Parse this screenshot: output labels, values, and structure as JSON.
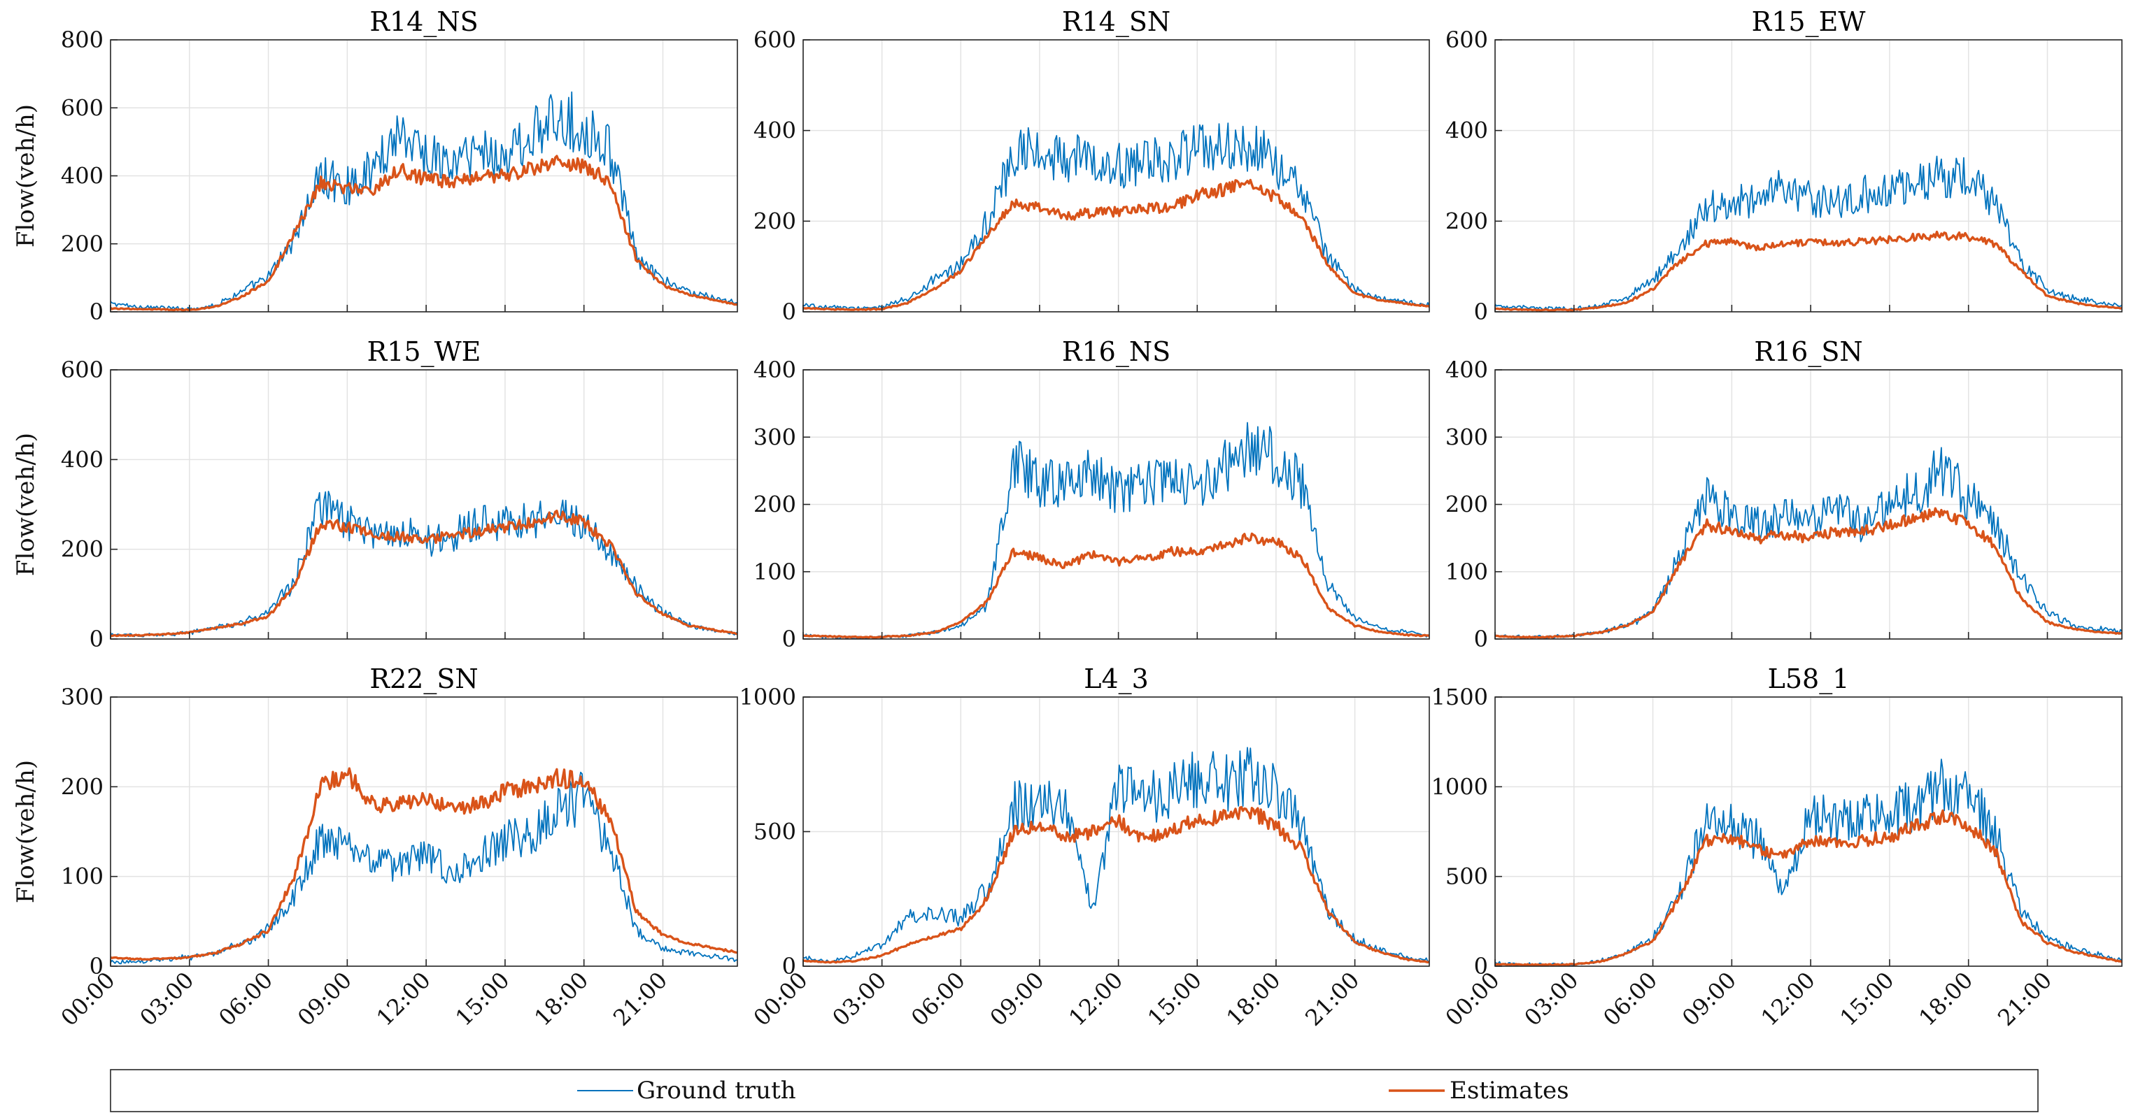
{
  "figure": {
    "ylabel": "Flow(veh/h)",
    "time_ticks": [
      "00:00",
      "03:00",
      "06:00",
      "09:00",
      "12:00",
      "15:00",
      "18:00",
      "21:00"
    ],
    "colors": {
      "ground_truth": "#0072BD",
      "estimates": "#D95319",
      "grid": "#e3e3e3",
      "axes": "#262626"
    }
  },
  "legend": {
    "ground_truth": "Ground truth",
    "estimates": "Estimates",
    "placement": "bottom"
  },
  "chart_data": [
    {
      "type": "line",
      "title": "R14_NS",
      "ylim": [
        0,
        800
      ],
      "yticks": [
        "0",
        "200",
        "400",
        "600",
        "800"
      ],
      "xlabel": "",
      "ylabel": "Flow(veh/h)",
      "x": [
        "00:00",
        "01:00",
        "02:00",
        "03:00",
        "04:00",
        "05:00",
        "06:00",
        "07:00",
        "08:00",
        "09:00",
        "10:00",
        "11:00",
        "12:00",
        "13:00",
        "14:00",
        "15:00",
        "16:00",
        "17:00",
        "18:00",
        "19:00",
        "20:00",
        "21:00",
        "22:00",
        "23:00",
        "23:50"
      ],
      "series": [
        {
          "name": "Ground truth",
          "values": [
            25,
            15,
            12,
            8,
            20,
            60,
            100,
            220,
            400,
            370,
            420,
            540,
            460,
            430,
            480,
            450,
            520,
            560,
            550,
            480,
            160,
            90,
            60,
            40,
            25
          ]
        },
        {
          "name": "Estimates",
          "values": [
            10,
            8,
            7,
            5,
            15,
            45,
            90,
            230,
            380,
            360,
            360,
            420,
            390,
            380,
            400,
            400,
            420,
            440,
            430,
            380,
            150,
            80,
            50,
            35,
            20
          ]
        }
      ]
    },
    {
      "type": "line",
      "title": "R14_SN",
      "ylim": [
        0,
        600
      ],
      "yticks": [
        "0",
        "200",
        "400",
        "600"
      ],
      "xlabel": "",
      "ylabel": "",
      "x": [
        "00:00",
        "01:00",
        "02:00",
        "03:00",
        "04:00",
        "05:00",
        "06:00",
        "07:00",
        "08:00",
        "09:00",
        "10:00",
        "11:00",
        "12:00",
        "13:00",
        "14:00",
        "15:00",
        "16:00",
        "17:00",
        "18:00",
        "19:00",
        "20:00",
        "21:00",
        "22:00",
        "23:00",
        "23:50"
      ],
      "series": [
        {
          "name": "Ground truth",
          "values": [
            15,
            10,
            8,
            10,
            30,
            70,
            110,
            200,
            340,
            360,
            330,
            340,
            320,
            330,
            340,
            360,
            360,
            370,
            330,
            260,
            120,
            50,
            30,
            20,
            15
          ]
        },
        {
          "name": "Estimates",
          "values": [
            8,
            6,
            5,
            6,
            20,
            50,
            90,
            170,
            240,
            230,
            210,
            220,
            220,
            230,
            230,
            260,
            270,
            290,
            250,
            210,
            100,
            40,
            25,
            18,
            12
          ]
        }
      ]
    },
    {
      "type": "line",
      "title": "R15_EW",
      "ylim": [
        0,
        600
      ],
      "yticks": [
        "0",
        "200",
        "400",
        "600"
      ],
      "xlabel": "",
      "ylabel": "",
      "x": [
        "00:00",
        "01:00",
        "02:00",
        "03:00",
        "04:00",
        "05:00",
        "06:00",
        "07:00",
        "08:00",
        "09:00",
        "10:00",
        "11:00",
        "12:00",
        "13:00",
        "14:00",
        "15:00",
        "16:00",
        "17:00",
        "18:00",
        "19:00",
        "20:00",
        "21:00",
        "22:00",
        "23:00",
        "23:50"
      ],
      "series": [
        {
          "name": "Ground truth",
          "values": [
            15,
            10,
            8,
            6,
            15,
            30,
            70,
            140,
            230,
            240,
            250,
            280,
            250,
            240,
            260,
            270,
            280,
            300,
            290,
            240,
            110,
            50,
            30,
            20,
            15
          ]
        },
        {
          "name": "Estimates",
          "values": [
            6,
            5,
            4,
            4,
            10,
            20,
            50,
            110,
            150,
            155,
            140,
            150,
            155,
            150,
            155,
            160,
            165,
            170,
            165,
            150,
            90,
            35,
            20,
            12,
            8
          ]
        }
      ]
    },
    {
      "type": "line",
      "title": "R15_WE",
      "ylim": [
        0,
        600
      ],
      "yticks": [
        "0",
        "200",
        "400",
        "600"
      ],
      "xlabel": "",
      "ylabel": "Flow(veh/h)",
      "x": [
        "00:00",
        "01:00",
        "02:00",
        "03:00",
        "04:00",
        "05:00",
        "06:00",
        "07:00",
        "08:00",
        "09:00",
        "10:00",
        "11:00",
        "12:00",
        "13:00",
        "14:00",
        "15:00",
        "16:00",
        "17:00",
        "18:00",
        "19:00",
        "20:00",
        "21:00",
        "22:00",
        "23:00",
        "23:50"
      ],
      "series": [
        {
          "name": "Ground truth",
          "values": [
            10,
            8,
            10,
            15,
            25,
            35,
            60,
            130,
            300,
            260,
            230,
            240,
            220,
            230,
            260,
            260,
            270,
            280,
            250,
            200,
            110,
            60,
            30,
            20,
            12
          ]
        },
        {
          "name": "Estimates",
          "values": [
            8,
            8,
            10,
            15,
            25,
            35,
            50,
            120,
            260,
            250,
            230,
            230,
            220,
            230,
            240,
            250,
            260,
            275,
            260,
            210,
            100,
            55,
            30,
            20,
            12
          ]
        }
      ]
    },
    {
      "type": "line",
      "title": "R16_NS",
      "ylim": [
        0,
        400
      ],
      "yticks": [
        "0",
        "100",
        "200",
        "300",
        "400"
      ],
      "xlabel": "",
      "ylabel": "",
      "x": [
        "00:00",
        "01:00",
        "02:00",
        "03:00",
        "04:00",
        "05:00",
        "06:00",
        "07:00",
        "08:00",
        "09:00",
        "10:00",
        "11:00",
        "12:00",
        "13:00",
        "14:00",
        "15:00",
        "16:00",
        "17:00",
        "18:00",
        "19:00",
        "20:00",
        "21:00",
        "22:00",
        "23:00",
        "23:50"
      ],
      "series": [
        {
          "name": "Ground truth",
          "values": [
            5,
            3,
            2,
            3,
            5,
            10,
            20,
            50,
            270,
            230,
            230,
            250,
            220,
            230,
            240,
            220,
            260,
            280,
            270,
            230,
            80,
            30,
            15,
            10,
            5
          ]
        },
        {
          "name": "Estimates",
          "values": [
            5,
            4,
            3,
            3,
            5,
            10,
            25,
            55,
            130,
            120,
            110,
            125,
            115,
            120,
            130,
            130,
            140,
            150,
            145,
            120,
            45,
            20,
            10,
            6,
            5
          ]
        }
      ]
    },
    {
      "type": "line",
      "title": "R16_SN",
      "ylim": [
        0,
        400
      ],
      "yticks": [
        "0",
        "100",
        "200",
        "300",
        "400"
      ],
      "xlabel": "",
      "ylabel": "",
      "x": [
        "00:00",
        "01:00",
        "02:00",
        "03:00",
        "04:00",
        "05:00",
        "06:00",
        "07:00",
        "08:00",
        "09:00",
        "10:00",
        "11:00",
        "12:00",
        "13:00",
        "14:00",
        "15:00",
        "16:00",
        "17:00",
        "18:00",
        "19:00",
        "20:00",
        "21:00",
        "22:00",
        "23:00",
        "23:50"
      ],
      "series": [
        {
          "name": "Ground truth",
          "values": [
            5,
            3,
            3,
            5,
            10,
            20,
            40,
            120,
            210,
            190,
            170,
            180,
            180,
            190,
            170,
            200,
            220,
            250,
            210,
            170,
            90,
            40,
            20,
            15,
            10
          ]
        },
        {
          "name": "Estimates",
          "values": [
            4,
            3,
            3,
            5,
            10,
            20,
            40,
            110,
            170,
            160,
            150,
            155,
            150,
            160,
            160,
            170,
            180,
            190,
            170,
            140,
            60,
            25,
            15,
            10,
            8
          ]
        }
      ]
    },
    {
      "type": "line",
      "title": "R22_SN",
      "ylim": [
        0,
        300
      ],
      "yticks": [
        "0",
        "100",
        "200",
        "300"
      ],
      "xlabel": "",
      "ylabel": "Flow(veh/h)",
      "x": [
        "00:00",
        "01:00",
        "02:00",
        "03:00",
        "04:00",
        "05:00",
        "06:00",
        "07:00",
        "08:00",
        "09:00",
        "10:00",
        "11:00",
        "12:00",
        "13:00",
        "14:00",
        "15:00",
        "16:00",
        "17:00",
        "18:00",
        "19:00",
        "20:00",
        "21:00",
        "22:00",
        "23:00",
        "23:50"
      ],
      "series": [
        {
          "name": "Ground truth",
          "values": [
            5,
            5,
            8,
            10,
            15,
            25,
            40,
            80,
            140,
            130,
            120,
            110,
            130,
            100,
            120,
            140,
            150,
            170,
            190,
            130,
            40,
            20,
            15,
            10,
            8
          ]
        },
        {
          "name": "Estimates",
          "values": [
            10,
            8,
            8,
            10,
            15,
            25,
            40,
            100,
            200,
            215,
            180,
            180,
            185,
            175,
            180,
            195,
            200,
            210,
            205,
            165,
            60,
            35,
            25,
            20,
            15
          ]
        }
      ]
    },
    {
      "type": "line",
      "title": "L4_3",
      "ylim": [
        0,
        1000
      ],
      "yticks": [
        "0",
        "500",
        "1000"
      ],
      "xlabel": "",
      "ylabel": "",
      "x": [
        "00:00",
        "01:00",
        "02:00",
        "03:00",
        "04:00",
        "05:00",
        "06:00",
        "07:00",
        "08:00",
        "09:00",
        "10:00",
        "11:00",
        "12:00",
        "13:00",
        "14:00",
        "15:00",
        "16:00",
        "17:00",
        "18:00",
        "19:00",
        "20:00",
        "21:00",
        "22:00",
        "23:00",
        "23:50"
      ],
      "series": [
        {
          "name": "Ground truth",
          "values": [
            30,
            20,
            40,
            80,
            180,
            200,
            180,
            280,
            600,
            600,
            580,
            200,
            680,
            620,
            650,
            700,
            680,
            720,
            650,
            520,
            200,
            100,
            60,
            30,
            20
          ]
        },
        {
          "name": "Estimates",
          "values": [
            20,
            15,
            20,
            40,
            80,
            110,
            140,
            250,
            500,
            520,
            480,
            500,
            540,
            470,
            510,
            540,
            560,
            580,
            520,
            430,
            200,
            90,
            50,
            25,
            15
          ]
        }
      ]
    },
    {
      "type": "line",
      "title": "L58_1",
      "ylim": [
        0,
        1500
      ],
      "yticks": [
        "0",
        "500",
        "1000",
        "1500"
      ],
      "xlabel": "",
      "ylabel": "",
      "x": [
        "00:00",
        "01:00",
        "02:00",
        "03:00",
        "04:00",
        "05:00",
        "06:00",
        "07:00",
        "08:00",
        "09:00",
        "10:00",
        "11:00",
        "12:00",
        "13:00",
        "14:00",
        "15:00",
        "16:00",
        "17:00",
        "18:00",
        "19:00",
        "20:00",
        "21:00",
        "22:00",
        "23:00",
        "23:50"
      ],
      "series": [
        {
          "name": "Ground truth",
          "values": [
            15,
            10,
            8,
            10,
            30,
            80,
            150,
            400,
            800,
            800,
            700,
            400,
            850,
            800,
            850,
            850,
            900,
            1000,
            950,
            750,
            300,
            150,
            100,
            60,
            30
          ]
        },
        {
          "name": "Estimates",
          "values": [
            10,
            8,
            8,
            10,
            25,
            70,
            140,
            380,
            700,
            720,
            650,
            620,
            700,
            680,
            700,
            720,
            780,
            830,
            780,
            650,
            250,
            130,
            80,
            50,
            25
          ]
        }
      ]
    }
  ]
}
